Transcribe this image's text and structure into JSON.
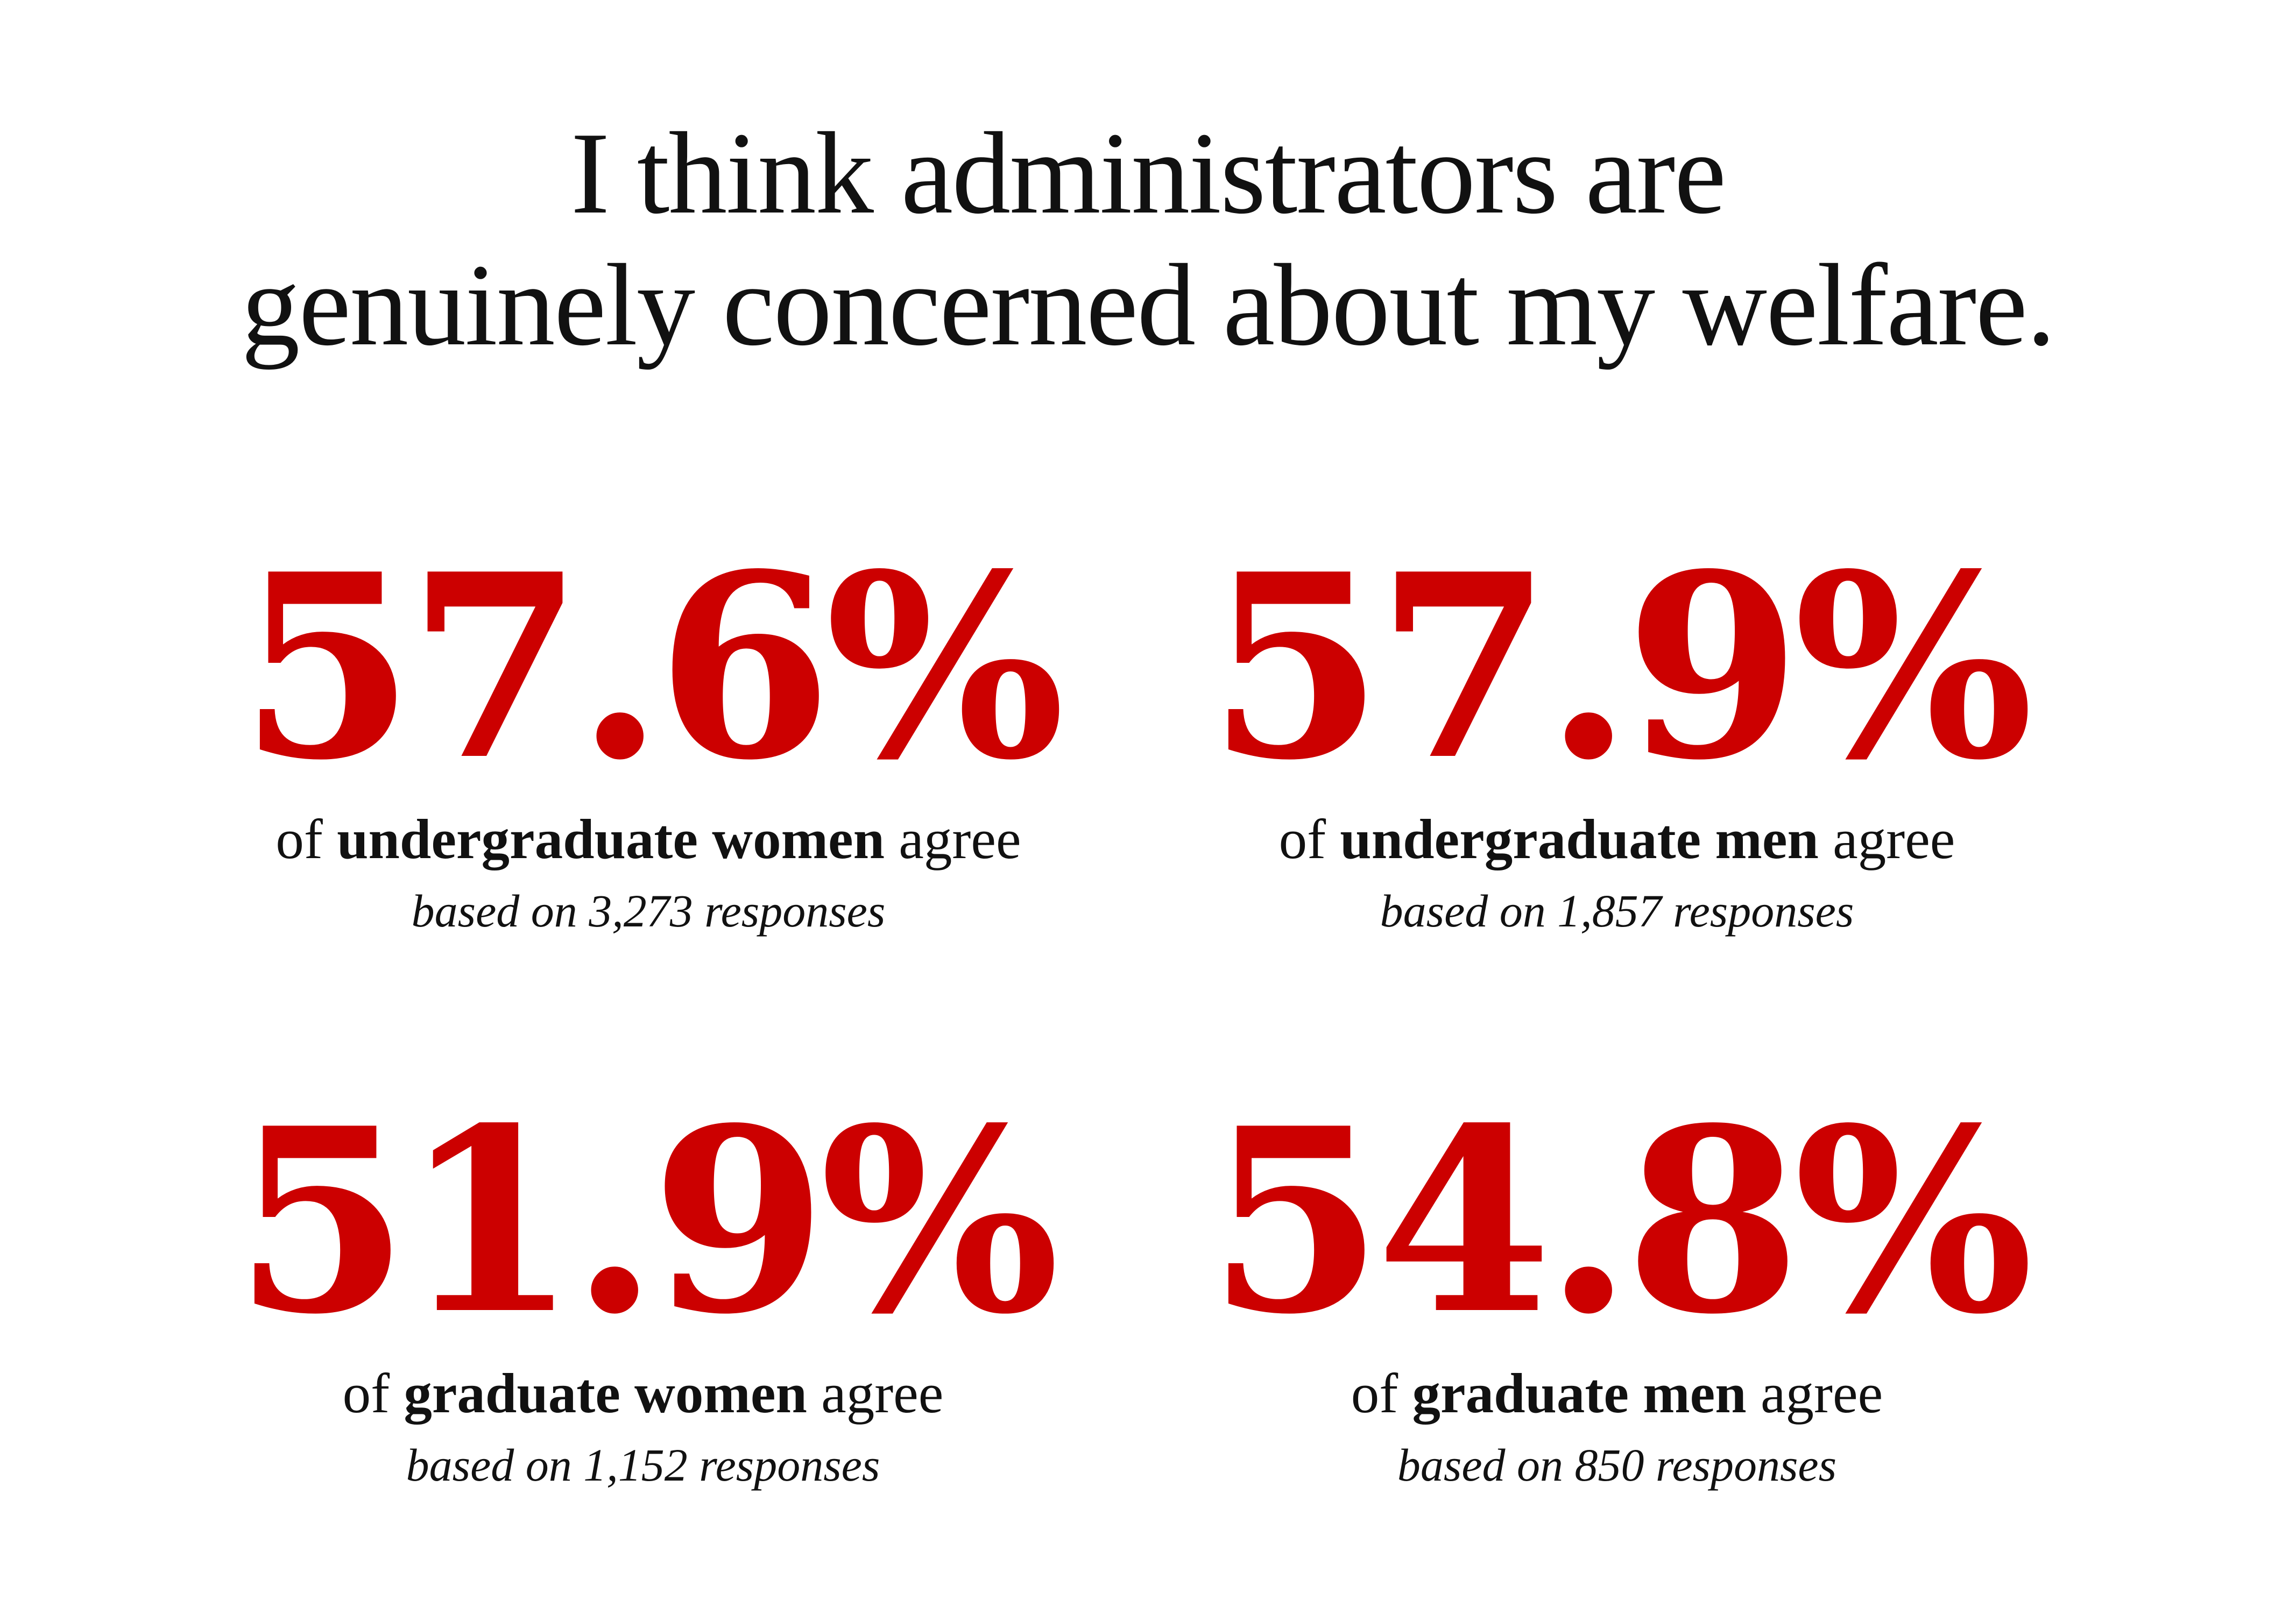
{
  "chart_data": {
    "type": "table",
    "title_lines": [
      "I think administrators are",
      "genuinely concerned about my welfare."
    ],
    "accent_color": "#cc0000",
    "stats": [
      {
        "value": "57.6%",
        "percent": 57.6,
        "prefix": "of",
        "group": "undergraduate women",
        "suffix": "agree",
        "basis": "based on 3,273 responses",
        "responses": 3273
      },
      {
        "value": "57.9%",
        "percent": 57.9,
        "prefix": "of",
        "group": "undergraduate men",
        "suffix": "agree",
        "basis": "based on 1,857 responses",
        "responses": 1857
      },
      {
        "value": "51.9%",
        "percent": 51.9,
        "prefix": "of",
        "group": "graduate women",
        "suffix": "agree",
        "basis": "based on 1,152 responses",
        "responses": 1152
      },
      {
        "value": "54.8%",
        "percent": 54.8,
        "prefix": "of",
        "group": "graduate men",
        "suffix": "agree",
        "basis": "based on 850 responses",
        "responses": 850
      }
    ]
  }
}
